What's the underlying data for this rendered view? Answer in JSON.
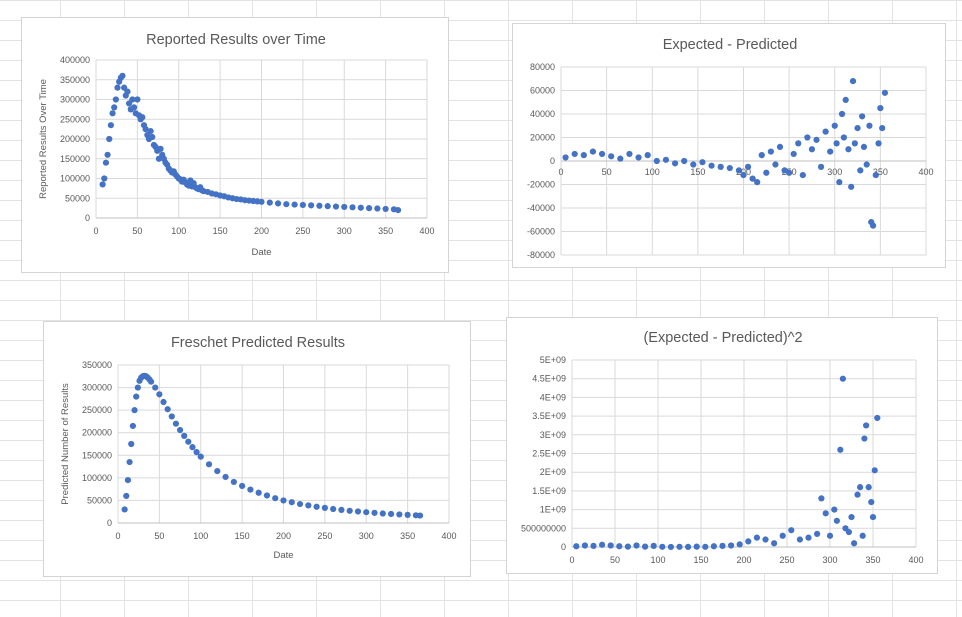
{
  "colors": {
    "series": "#4472C4",
    "grid": "#d9d9d9",
    "text": "#595959"
  },
  "chart_data": [
    {
      "id": "reported",
      "type": "scatter",
      "title": "Reported Results over Time",
      "xlabel": "Date",
      "ylabel": "Reported Results Over Time",
      "xlim": [
        0,
        400
      ],
      "ylim": [
        0,
        400000
      ],
      "xticks": [
        0,
        50,
        100,
        150,
        200,
        250,
        300,
        350,
        400
      ],
      "yticks": [
        0,
        50000,
        100000,
        150000,
        200000,
        250000,
        300000,
        350000,
        400000
      ],
      "ytick_labels": [
        "0",
        "50000",
        "100000",
        "150000",
        "200000",
        "250000",
        "300000",
        "350000",
        "400000"
      ],
      "grid": true,
      "legend": "none",
      "x": [
        8,
        10,
        12,
        14,
        16,
        18,
        20,
        22,
        24,
        26,
        28,
        30,
        32,
        34,
        36,
        38,
        40,
        42,
        44,
        46,
        48,
        50,
        52,
        54,
        56,
        58,
        60,
        62,
        64,
        66,
        68,
        70,
        72,
        74,
        76,
        78,
        80,
        82,
        84,
        86,
        88,
        90,
        92,
        94,
        96,
        98,
        100,
        102,
        104,
        106,
        108,
        110,
        112,
        114,
        116,
        118,
        120,
        122,
        124,
        126,
        128,
        130,
        135,
        140,
        145,
        150,
        155,
        160,
        165,
        170,
        175,
        180,
        185,
        190,
        195,
        200,
        210,
        220,
        230,
        240,
        250,
        260,
        270,
        280,
        290,
        300,
        310,
        320,
        330,
        340,
        350,
        360,
        365
      ],
      "y": [
        85000,
        100000,
        140000,
        160000,
        200000,
        235000,
        265000,
        280000,
        300000,
        330000,
        345000,
        355000,
        360000,
        330000,
        310000,
        320000,
        290000,
        275000,
        300000,
        280000,
        265000,
        300000,
        260000,
        250000,
        255000,
        235000,
        225000,
        210000,
        200000,
        220000,
        205000,
        185000,
        180000,
        170000,
        150000,
        175000,
        160000,
        150000,
        140000,
        135000,
        125000,
        120000,
        115000,
        118000,
        110000,
        105000,
        100000,
        98000,
        92000,
        97000,
        90000,
        85000,
        82000,
        95000,
        80000,
        88000,
        78000,
        75000,
        73000,
        78000,
        70000,
        68000,
        66000,
        62000,
        60000,
        57000,
        55000,
        52000,
        50000,
        48000,
        47000,
        45000,
        44000,
        43000,
        42000,
        41000,
        39000,
        37000,
        35000,
        34000,
        33000,
        32000,
        31000,
        30000,
        29000,
        28000,
        27000,
        26000,
        25000,
        24000,
        23000,
        22000,
        20000
      ]
    },
    {
      "id": "expected-minus-predicted",
      "type": "scatter",
      "title": "Expected - Predicted",
      "xlabel": "",
      "ylabel": "",
      "xlim": [
        0,
        400
      ],
      "ylim": [
        -80000,
        80000
      ],
      "xticks": [
        0,
        50,
        100,
        150,
        200,
        250,
        300,
        350,
        400
      ],
      "yticks": [
        -80000,
        -60000,
        -40000,
        -20000,
        0,
        20000,
        40000,
        60000,
        80000
      ],
      "ytick_labels": [
        "-80000",
        "-60000",
        "-40000",
        "-20000",
        "0",
        "20000",
        "40000",
        "60000",
        "80000"
      ],
      "grid": true,
      "legend": "none",
      "x": [
        5,
        15,
        25,
        35,
        45,
        55,
        65,
        75,
        85,
        95,
        105,
        115,
        125,
        135,
        145,
        155,
        165,
        175,
        185,
        195,
        200,
        205,
        210,
        215,
        220,
        225,
        230,
        235,
        240,
        245,
        250,
        255,
        260,
        265,
        270,
        275,
        280,
        285,
        290,
        295,
        300,
        302,
        305,
        308,
        310,
        312,
        315,
        318,
        320,
        322,
        325,
        328,
        330,
        332,
        335,
        338,
        340,
        342,
        345,
        348,
        350,
        352,
        355
      ],
      "y": [
        3000,
        6000,
        5000,
        8000,
        6000,
        4000,
        2000,
        6000,
        3000,
        5000,
        0,
        1000,
        -2000,
        0,
        -3000,
        -1000,
        -4000,
        -5000,
        -6000,
        -8000,
        -12000,
        -5000,
        -15000,
        -18000,
        5000,
        -10000,
        8000,
        -3000,
        12000,
        -8000,
        -10000,
        6000,
        15000,
        -12000,
        20000,
        10000,
        18000,
        -5000,
        25000,
        8000,
        30000,
        15000,
        -18000,
        40000,
        20000,
        52000,
        10000,
        -22000,
        68000,
        15000,
        28000,
        -8000,
        38000,
        12000,
        -3000,
        30000,
        -52000,
        -55000,
        -12000,
        15000,
        45000,
        28000,
        58000
      ]
    },
    {
      "id": "predicted",
      "type": "scatter",
      "title": "Freschet Predicted Results",
      "xlabel": "Date",
      "ylabel": "Predicted Number of Results",
      "xlim": [
        0,
        400
      ],
      "ylim": [
        0,
        350000
      ],
      "xticks": [
        0,
        50,
        100,
        150,
        200,
        250,
        300,
        350,
        400
      ],
      "yticks": [
        0,
        50000,
        100000,
        150000,
        200000,
        250000,
        300000,
        350000
      ],
      "ytick_labels": [
        "0",
        "50000",
        "100000",
        "150000",
        "200000",
        "250000",
        "300000",
        "350000"
      ],
      "grid": true,
      "legend": "none",
      "x": [
        8,
        10,
        12,
        14,
        16,
        18,
        20,
        22,
        24,
        26,
        28,
        30,
        32,
        34,
        36,
        38,
        40,
        45,
        50,
        55,
        60,
        65,
        70,
        75,
        80,
        85,
        90,
        95,
        100,
        110,
        120,
        130,
        140,
        150,
        160,
        170,
        180,
        190,
        200,
        210,
        220,
        230,
        240,
        250,
        260,
        270,
        280,
        290,
        300,
        310,
        320,
        330,
        340,
        350,
        360,
        365
      ],
      "y": [
        30000,
        60000,
        95000,
        135000,
        175000,
        215000,
        250000,
        280000,
        300000,
        315000,
        322000,
        325000,
        326000,
        325000,
        322000,
        318000,
        313000,
        300000,
        285000,
        268000,
        252000,
        236000,
        220000,
        206000,
        193000,
        180000,
        168000,
        157000,
        147000,
        130000,
        115000,
        102000,
        91000,
        82000,
        74000,
        67000,
        61000,
        55000,
        50000,
        46000,
        42000,
        39000,
        36000,
        33500,
        31000,
        29000,
        27000,
        25500,
        24000,
        22500,
        21000,
        20000,
        19000,
        18000,
        17000,
        16500
      ]
    },
    {
      "id": "squared-error",
      "type": "scatter",
      "title": "(Expected - Predicted)^2",
      "xlabel": "",
      "ylabel": "",
      "xlim": [
        0,
        400
      ],
      "ylim": [
        0,
        5000000000
      ],
      "xticks": [
        0,
        50,
        100,
        150,
        200,
        250,
        300,
        350,
        400
      ],
      "yticks": [
        0,
        500000000,
        1000000000,
        1500000000,
        2000000000,
        2500000000,
        3000000000,
        3500000000,
        4000000000,
        4500000000,
        5000000000
      ],
      "ytick_labels": [
        "0",
        "500000000",
        "1E+09",
        "1.5E+09",
        "2E+09",
        "2.5E+09",
        "3E+09",
        "3.5E+09",
        "4E+09",
        "4.5E+09",
        "5E+09"
      ],
      "grid": true,
      "legend": "none",
      "x": [
        5,
        15,
        25,
        35,
        45,
        55,
        65,
        75,
        85,
        95,
        105,
        115,
        125,
        135,
        145,
        155,
        165,
        175,
        185,
        195,
        205,
        215,
        225,
        235,
        245,
        255,
        265,
        275,
        285,
        290,
        295,
        300,
        305,
        308,
        312,
        315,
        318,
        322,
        325,
        328,
        332,
        335,
        338,
        340,
        342,
        345,
        348,
        350,
        352,
        355
      ],
      "y": [
        20000000,
        40000000,
        30000000,
        60000000,
        40000000,
        20000000,
        10000000,
        40000000,
        10000000,
        30000000,
        5000000,
        2000000,
        5000000,
        3000000,
        10000000,
        5000000,
        20000000,
        30000000,
        40000000,
        70000000,
        150000000,
        250000000,
        200000000,
        100000000,
        300000000,
        450000000,
        200000000,
        250000000,
        350000000,
        1300000000,
        900000000,
        300000000,
        1000000000,
        700000000,
        2600000000,
        4500000000,
        500000000,
        400000000,
        800000000,
        100000000,
        1400000000,
        1600000000,
        300000000,
        2900000000,
        3250000000,
        1600000000,
        1200000000,
        800000000,
        2050000000,
        3450000000
      ]
    }
  ]
}
